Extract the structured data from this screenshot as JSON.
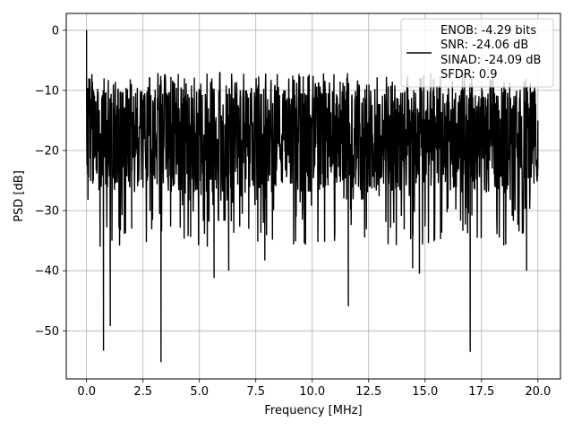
{
  "chart_data": {
    "type": "line",
    "xlabel": "Frequency [MHz]",
    "ylabel": "PSD [dB]",
    "xlim": [
      -0.9,
      21.0
    ],
    "ylim": [
      -58.0,
      2.8
    ],
    "x_ticks": [
      0.0,
      2.5,
      5.0,
      7.5,
      10.0,
      12.5,
      15.0,
      17.5,
      20.0
    ],
    "x_tick_labels": [
      "0.0",
      "2.5",
      "5.0",
      "7.5",
      "10.0",
      "12.5",
      "15.0",
      "17.5",
      "20.0"
    ],
    "y_ticks": [
      0,
      -10,
      -20,
      -30,
      -40,
      -50
    ],
    "y_tick_labels": [
      "0",
      "−10",
      "−20",
      "−30",
      "−40",
      "−50"
    ],
    "grid": true,
    "legend_position": "top-right",
    "colors": {
      "line": "#000000",
      "grid": "#b0b0b0",
      "legend_border": "#cccccc"
    },
    "series": [
      {
        "legend_lines": [
          "ENOB: -4.29 bits",
          "SNR: -24.06 dB",
          "SINAD: -24.09 dB",
          "SFDR: 0.9"
        ],
        "noise_floor_db": [
          -27.0,
          -10.0
        ],
        "x": [
          0.0,
          0.05,
          0.1,
          0.3,
          0.6,
          0.75,
          1.05,
          2.0,
          3.3,
          5.65,
          6.3,
          7.9,
          11.6,
          14.45,
          14.75,
          17.0,
          19.5,
          20.0
        ],
        "y": [
          0.0,
          -24.0,
          -8.0,
          -25.0,
          -36.0,
          -53.3,
          -49.2,
          -33.0,
          -55.2,
          -41.2,
          -40.0,
          -38.3,
          -45.9,
          -39.6,
          -40.5,
          -53.5,
          -40.0,
          -15.0
        ]
      }
    ]
  }
}
